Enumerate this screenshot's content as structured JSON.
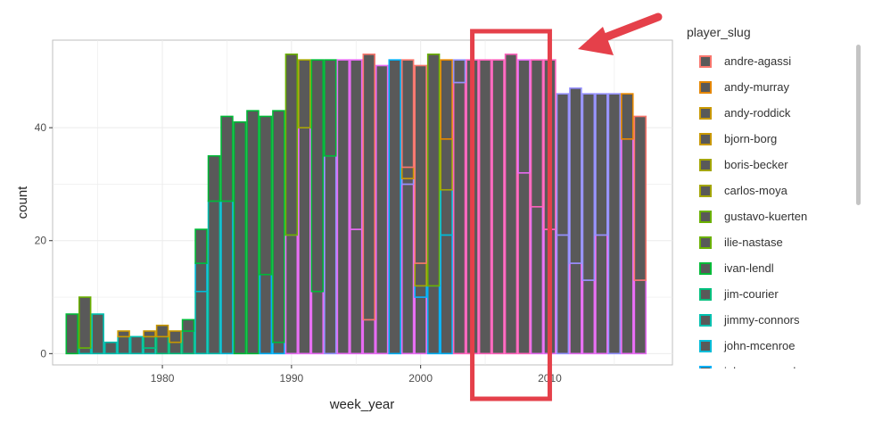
{
  "chart_data": {
    "type": "bar",
    "stacked": true,
    "xlabel": "week_year",
    "ylabel": "count",
    "xlim": [
      1971.5,
      2019.5
    ],
    "ylim": [
      -2,
      55.5
    ],
    "xticks": [
      1980,
      1990,
      2000,
      2010
    ],
    "yticks": [
      0,
      20,
      40
    ],
    "grid": true,
    "legend_title": "player_slug",
    "legend_position": "right",
    "players": [
      {
        "name": "andre-agassi",
        "color": "#F8766D"
      },
      {
        "name": "andy-murray",
        "color": "#E58700"
      },
      {
        "name": "andy-roddick",
        "color": "#C99800"
      },
      {
        "name": "bjorn-borg",
        "color": "#C99800"
      },
      {
        "name": "boris-becker",
        "color": "#A3A500"
      },
      {
        "name": "carlos-moya",
        "color": "#A3A500"
      },
      {
        "name": "gustavo-kuerten",
        "color": "#6BB100"
      },
      {
        "name": "ilie-nastase",
        "color": "#6BB100"
      },
      {
        "name": "ivan-lendl",
        "color": "#00BA38"
      },
      {
        "name": "jim-courier",
        "color": "#00BF7D"
      },
      {
        "name": "jimmy-connors",
        "color": "#00C0AF"
      },
      {
        "name": "john-mcenroe",
        "color": "#00BCD8"
      },
      {
        "name": "john-newcombe",
        "color": "#00B0F6"
      }
    ],
    "x": [
      1973,
      1974,
      1975,
      1976,
      1977,
      1978,
      1979,
      1980,
      1981,
      1982,
      1983,
      1984,
      1985,
      1986,
      1987,
      1988,
      1989,
      1990,
      1991,
      1992,
      1993,
      1994,
      1995,
      1996,
      1997,
      1998,
      1999,
      2000,
      2001,
      2002,
      2003,
      2004,
      2005,
      2006,
      2007,
      2008,
      2009,
      2010,
      2011,
      2012,
      2013,
      2014,
      2015,
      2016,
      2017
    ],
    "totals": [
      7,
      10,
      7,
      2,
      4,
      3,
      4,
      5,
      4,
      6,
      22,
      35,
      42,
      41,
      43,
      42,
      43,
      53,
      52,
      52,
      52,
      52,
      52,
      53,
      51,
      52,
      52,
      51,
      53,
      52,
      52,
      52,
      52,
      52,
      53,
      52,
      52,
      52,
      46,
      47,
      46,
      46,
      46,
      46,
      42
    ],
    "segments": [
      [
        [
          0,
          7,
          "#00BA38"
        ]
      ],
      [
        [
          0,
          1,
          "#00C0AF"
        ],
        [
          1,
          10,
          "#6BB100"
        ]
      ],
      [
        [
          0,
          7,
          "#00C0AF"
        ]
      ],
      [
        [
          0,
          2,
          "#00C0AF"
        ]
      ],
      [
        [
          0,
          3,
          "#00C0AF"
        ],
        [
          3,
          4,
          "#C99800"
        ]
      ],
      [
        [
          0,
          3,
          "#00C0AF"
        ]
      ],
      [
        [
          0,
          1,
          "#00C0AF"
        ],
        [
          1,
          3,
          "#00BF7D"
        ],
        [
          3,
          4,
          "#C99800"
        ]
      ],
      [
        [
          0,
          3,
          "#00BF7D"
        ],
        [
          3,
          5,
          "#C99800"
        ]
      ],
      [
        [
          0,
          2,
          "#00BF7D"
        ],
        [
          2,
          4,
          "#C99800"
        ]
      ],
      [
        [
          0,
          4,
          "#00BF7D"
        ],
        [
          4,
          6,
          "#00BA38"
        ]
      ],
      [
        [
          0,
          11,
          "#00C0AF"
        ],
        [
          11,
          16,
          "#00BCD8"
        ],
        [
          16,
          22,
          "#00BA38"
        ]
      ],
      [
        [
          0,
          27,
          "#00C0AF"
        ],
        [
          27,
          35,
          "#00BA38"
        ]
      ],
      [
        [
          0,
          27,
          "#00BCD8"
        ],
        [
          27,
          42,
          "#00BA38"
        ]
      ],
      [
        [
          0,
          41,
          "#00BA38"
        ]
      ],
      [
        [
          0,
          43,
          "#00BA38"
        ]
      ],
      [
        [
          0,
          14,
          "#00B0F6"
        ],
        [
          14,
          42,
          "#00BA38"
        ]
      ],
      [
        [
          0,
          2,
          "#00B0F6"
        ],
        [
          2,
          43,
          "#00BA38"
        ]
      ],
      [
        [
          0,
          21,
          "#E76BF3"
        ],
        [
          21,
          53,
          "#6BB100"
        ]
      ],
      [
        [
          0,
          40,
          "#E76BF3"
        ],
        [
          40,
          52,
          "#A3A500"
        ]
      ],
      [
        [
          0,
          11,
          "#E76BF3"
        ],
        [
          11,
          52,
          "#00BA38"
        ]
      ],
      [
        [
          0,
          35,
          "#9590FF"
        ],
        [
          35,
          52,
          "#00BA38"
        ]
      ],
      [
        [
          0,
          52,
          "#E76BF3"
        ]
      ],
      [
        [
          0,
          22,
          "#E76BF3"
        ],
        [
          22,
          52,
          "#E76BF3"
        ]
      ],
      [
        [
          0,
          6,
          "#E76BF3"
        ],
        [
          6,
          53,
          "#F8766D"
        ]
      ],
      [
        [
          0,
          51,
          "#E76BF3"
        ],
        [
          51,
          51,
          "#00B0F6"
        ]
      ],
      [
        [
          0,
          52,
          "#00B0F6"
        ]
      ],
      [
        [
          0,
          30,
          "#E76BF3"
        ],
        [
          30,
          31,
          "#9590FF"
        ],
        [
          31,
          33,
          "#C99800"
        ],
        [
          33,
          52,
          "#F8766D"
        ]
      ],
      [
        [
          0,
          10,
          "#E76BF3"
        ],
        [
          10,
          12,
          "#00B0F6"
        ],
        [
          12,
          16,
          "#A3A500"
        ],
        [
          16,
          51,
          "#F8766D"
        ]
      ],
      [
        [
          0,
          12,
          "#00B0F6"
        ],
        [
          12,
          53,
          "#6BB100"
        ]
      ],
      [
        [
          0,
          21,
          "#00B0F6"
        ],
        [
          21,
          29,
          "#00BCD8"
        ],
        [
          29,
          38,
          "#A3A500"
        ],
        [
          38,
          52,
          "#E58700"
        ]
      ],
      [
        [
          0,
          48,
          "#FF62BC"
        ],
        [
          48,
          52,
          "#9590FF"
        ]
      ],
      [
        [
          0,
          52,
          "#FF62BC"
        ]
      ],
      [
        [
          0,
          52,
          "#FF62BC"
        ]
      ],
      [
        [
          0,
          52,
          "#FF62BC"
        ]
      ],
      [
        [
          0,
          53,
          "#FF62BC"
        ]
      ],
      [
        [
          0,
          32,
          "#FF62BC"
        ],
        [
          32,
          52,
          "#E76BF3"
        ]
      ],
      [
        [
          0,
          26,
          "#E76BF3"
        ],
        [
          26,
          52,
          "#FF62BC"
        ]
      ],
      [
        [
          0,
          22,
          "#E76BF3"
        ],
        [
          22,
          52,
          "#FF62BC"
        ]
      ],
      [
        [
          0,
          21,
          "#9590FF"
        ],
        [
          21,
          46,
          "#9590FF"
        ]
      ],
      [
        [
          0,
          16,
          "#E76BF3"
        ],
        [
          16,
          47,
          "#9590FF"
        ]
      ],
      [
        [
          0,
          13,
          "#E76BF3"
        ],
        [
          13,
          46,
          "#9590FF"
        ]
      ],
      [
        [
          0,
          21,
          "#E76BF3"
        ],
        [
          21,
          46,
          "#9590FF"
        ]
      ],
      [
        [
          0,
          46,
          "#9590FF"
        ]
      ],
      [
        [
          0,
          38,
          "#E76BF3"
        ],
        [
          38,
          46,
          "#E58700"
        ]
      ],
      [
        [
          0,
          13,
          "#E76BF3"
        ],
        [
          13,
          42,
          "#F8766D"
        ]
      ]
    ],
    "annotations": {
      "highlight_box": {
        "x_from": 2004,
        "x_to": 2010,
        "color": "#E5404A"
      },
      "arrow_color": "#E5404A"
    }
  },
  "legend": {
    "title": "player_slug"
  },
  "colors": {
    "bar_fill": "#595959",
    "panel_border": "#bfbfbf",
    "grid": "#ebebeb",
    "tick_text": "#4d4d4d",
    "axis_title": "#262626"
  }
}
